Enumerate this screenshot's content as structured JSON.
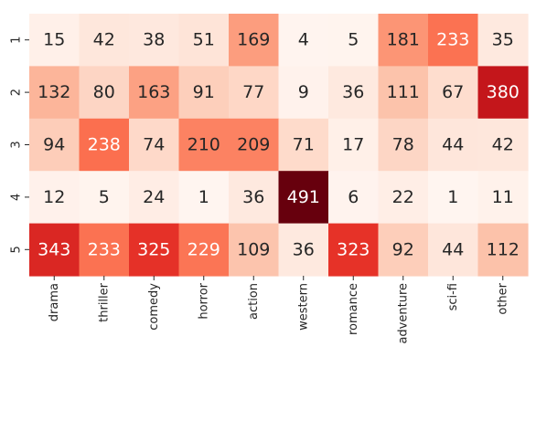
{
  "chart_data": {
    "type": "heatmap",
    "title": "",
    "xlabel": "",
    "ylabel": "",
    "x_categories": [
      "drama",
      "thriller",
      "comedy",
      "horror",
      "action",
      "western",
      "romance",
      "adventure",
      "sci-fi",
      "other"
    ],
    "y_categories": [
      "1",
      "2",
      "3",
      "4",
      "5"
    ],
    "values": [
      [
        15,
        42,
        38,
        51,
        169,
        4,
        5,
        181,
        233,
        35
      ],
      [
        132,
        80,
        163,
        91,
        77,
        9,
        36,
        111,
        67,
        380
      ],
      [
        94,
        238,
        74,
        210,
        209,
        71,
        17,
        78,
        44,
        42
      ],
      [
        12,
        5,
        24,
        1,
        36,
        491,
        6,
        22,
        1,
        11
      ],
      [
        343,
        233,
        325,
        229,
        109,
        36,
        323,
        92,
        44,
        112
      ]
    ],
    "colormap": "Reds",
    "vmin": 1,
    "vmax": 491,
    "colorbar": false,
    "cell_annotations": true
  }
}
